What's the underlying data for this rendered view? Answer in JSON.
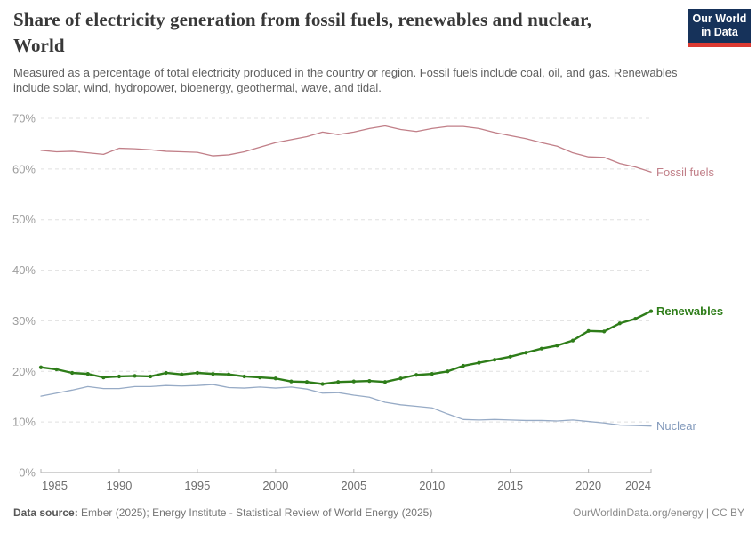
{
  "header": {
    "title": "Share of electricity generation from fossil fuels, renewables and nuclear, World",
    "subtitle": "Measured as a percentage of total electricity produced in the country or region. Fossil fuels include coal, oil, and gas. Renewables include solar, wind, hydropower, bioenergy, geothermal, wave, and tidal.",
    "logo": {
      "line1": "Our World",
      "line2": "in Data",
      "bg_color": "#16325a",
      "accent_color": "#dc3a32"
    }
  },
  "chart_data": {
    "type": "line",
    "x": [
      1985,
      1986,
      1987,
      1988,
      1989,
      1990,
      1991,
      1992,
      1993,
      1994,
      1995,
      1996,
      1997,
      1998,
      1999,
      2000,
      2001,
      2002,
      2003,
      2004,
      2005,
      2006,
      2007,
      2008,
      2009,
      2010,
      2011,
      2012,
      2013,
      2014,
      2015,
      2016,
      2017,
      2018,
      2019,
      2020,
      2021,
      2022,
      2023,
      2024
    ],
    "series": [
      {
        "name": "Fossil fuels",
        "color": "#c17f88",
        "label_color": "#c17f88",
        "line_width": 1.3,
        "markers": false,
        "label_bold": false,
        "values": [
          63.7,
          63.4,
          63.5,
          63.2,
          62.9,
          64.1,
          64.0,
          63.8,
          63.5,
          63.4,
          63.3,
          62.6,
          62.8,
          63.4,
          64.3,
          65.2,
          65.8,
          66.4,
          67.3,
          66.8,
          67.3,
          68.0,
          68.5,
          67.8,
          67.4,
          68.0,
          68.4,
          68.4,
          68.0,
          67.2,
          66.6,
          66.0,
          65.2,
          64.5,
          63.2,
          62.4,
          62.3,
          61.1,
          60.4,
          59.4
        ]
      },
      {
        "name": "Renewables",
        "color": "#2e7d19",
        "label_color": "#2e7d19",
        "line_width": 2.4,
        "markers": true,
        "label_bold": true,
        "values": [
          20.8,
          20.4,
          19.7,
          19.5,
          18.8,
          19.0,
          19.1,
          19.0,
          19.7,
          19.4,
          19.7,
          19.5,
          19.4,
          19.0,
          18.8,
          18.6,
          18.0,
          17.9,
          17.5,
          17.9,
          18.0,
          18.1,
          17.9,
          18.6,
          19.3,
          19.5,
          20.0,
          21.1,
          21.7,
          22.3,
          22.9,
          23.7,
          24.5,
          25.1,
          26.1,
          28.0,
          27.9,
          29.5,
          30.4,
          31.9
        ]
      },
      {
        "name": "Nuclear",
        "color": "#97abc6",
        "label_color": "#8299bb",
        "line_width": 1.3,
        "markers": false,
        "label_bold": false,
        "values": [
          15.1,
          15.7,
          16.3,
          17.0,
          16.6,
          16.6,
          17.0,
          17.0,
          17.2,
          17.1,
          17.2,
          17.4,
          16.8,
          16.7,
          16.9,
          16.7,
          16.9,
          16.5,
          15.7,
          15.8,
          15.3,
          14.9,
          13.9,
          13.4,
          13.1,
          12.8,
          11.6,
          10.5,
          10.4,
          10.5,
          10.4,
          10.3,
          10.3,
          10.2,
          10.4,
          10.1,
          9.8,
          9.4,
          9.3,
          9.2
        ]
      }
    ],
    "ylim": [
      0,
      70
    ],
    "ytick_values": [
      0,
      10,
      20,
      30,
      40,
      50,
      60,
      70
    ],
    "ytick_suffix": "%",
    "xticks": [
      1985,
      1990,
      1995,
      2000,
      2005,
      2010,
      2015,
      2020,
      2024
    ],
    "grid": "horizontal-dashed",
    "legend": "line-end-labels"
  },
  "footer": {
    "source_label": "Data source:",
    "source_text": "Ember (2025); Energy Institute - Statistical Review of World Energy (2025)",
    "attribution": "OurWorldinData.org/energy | CC BY"
  }
}
